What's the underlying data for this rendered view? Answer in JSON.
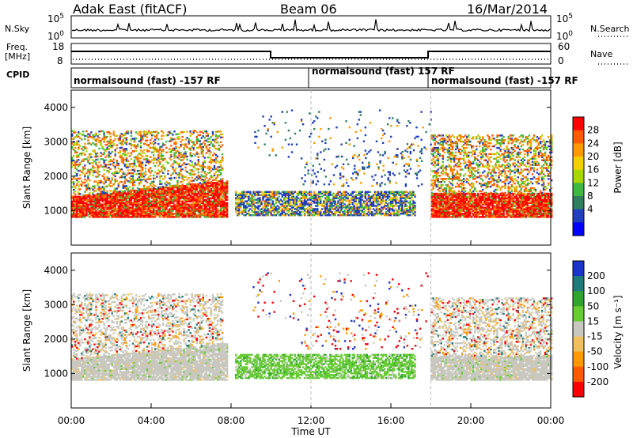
{
  "header": {
    "title": "Adak East (fitACF)",
    "beam": "Beam 06",
    "date": "16/Mar/2014"
  },
  "left_labels": {
    "nsky": "N.Sky",
    "freq": "Freq.",
    "mhz": "[MHz]",
    "cpid": "CPID"
  },
  "right_labels": {
    "nsearch": "N.Search",
    "nave": "Nave"
  },
  "noise_axis": {
    "top": "10^5",
    "bottom": "10^0"
  },
  "freq_axis": {
    "left_top": "18",
    "left_bottom": "8",
    "right_top": "60",
    "right_bottom": "0"
  },
  "cpid_segments": [
    {
      "text": "normalsound (fast) -157 RF"
    },
    {
      "text": "normalsound (fast) 157 RF"
    },
    {
      "text": "normalsound (fast) -157 RF"
    }
  ],
  "chart_data": [
    {
      "type": "heatmap",
      "name": "power-panel",
      "ylabel": "Slant Range [km]",
      "ylim": [
        0,
        4500
      ],
      "yticks": [
        "1000",
        "2000",
        "3000",
        "4000"
      ],
      "xlim": [
        0,
        24
      ],
      "colorbar": {
        "label": "Power [dB]",
        "ticks": [
          "28",
          "24",
          "20",
          "16",
          "12",
          "8",
          "4"
        ],
        "colors": [
          "#ff0000",
          "#ff5a00",
          "#ff9900",
          "#f2d100",
          "#a8d800",
          "#3fb83f",
          "#2f7f5f",
          "#1f3fbf",
          "#0000ff"
        ]
      }
    },
    {
      "type": "heatmap",
      "name": "velocity-panel",
      "ylabel": "Slant Range [km]",
      "ylim": [
        0,
        4500
      ],
      "yticks": [
        "1000",
        "2000",
        "3000",
        "4000"
      ],
      "xlim": [
        0,
        24
      ],
      "colorbar": {
        "label": "Velocity [m s⁻¹]",
        "ticks": [
          "200",
          "100",
          "50",
          "15",
          "-15",
          "-50",
          "-100",
          "-200"
        ],
        "colors": [
          "#1a33cc",
          "#1f7a7a",
          "#2fa52f",
          "#66cc33",
          "#c8c8c0",
          "#f0c060",
          "#ff9900",
          "#ff5a00",
          "#ff0000"
        ]
      }
    }
  ],
  "xaxis": {
    "label": "Time UT",
    "ticks": [
      "00:00",
      "04:00",
      "08:00",
      "12:00",
      "16:00",
      "20:00",
      "00:00"
    ]
  }
}
